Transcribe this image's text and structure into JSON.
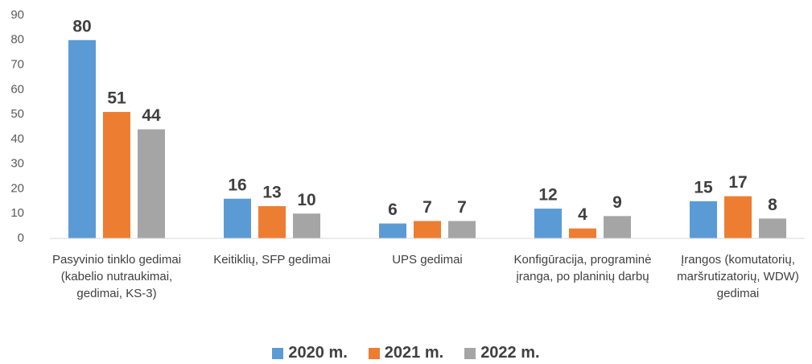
{
  "chart_data": {
    "type": "bar",
    "categories": [
      "Pasyvinio tinklo gedimai (kabelio nutraukimai, gedimai, KS-3)",
      "Keitiklių, SFP gedimai",
      "UPS gedimai",
      "Konfigūracija, programinė įranga, po planinių darbų",
      "Įrangos (komutatorių, maršrutizatorių, WDW) gedimai"
    ],
    "series": [
      {
        "name": "2020 m.",
        "color": "#5b9bd5",
        "values": [
          80,
          16,
          6,
          12,
          15
        ]
      },
      {
        "name": "2021 m.",
        "color": "#ed7d31",
        "values": [
          51,
          13,
          7,
          4,
          17
        ]
      },
      {
        "name": "2022 m.",
        "color": "#a5a5a5",
        "values": [
          44,
          10,
          7,
          9,
          8
        ]
      }
    ],
    "ylim": [
      0,
      90
    ],
    "yticks": [
      0,
      10,
      20,
      30,
      40,
      50,
      60,
      70,
      80,
      90
    ],
    "grid": false,
    "legend": "bottom"
  }
}
